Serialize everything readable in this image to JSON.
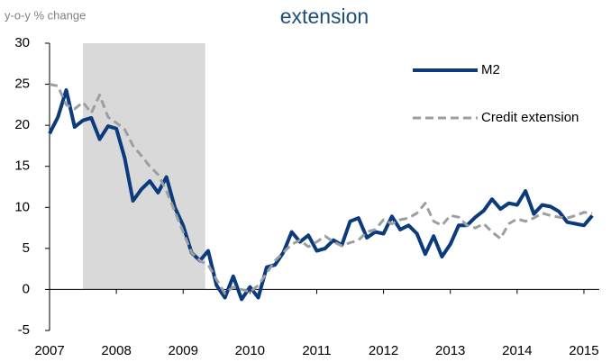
{
  "chart_data": {
    "type": "line",
    "title": "extension",
    "y_axis_label": "y-o-y % change",
    "x": [
      2007.0,
      2007.125,
      2007.25,
      2007.375,
      2007.5,
      2007.625,
      2007.75,
      2007.875,
      2008.0,
      2008.125,
      2008.25,
      2008.375,
      2008.5,
      2008.625,
      2008.75,
      2008.875,
      2009.0,
      2009.125,
      2009.25,
      2009.375,
      2009.5,
      2009.625,
      2009.75,
      2009.875,
      2010.0,
      2010.125,
      2010.25,
      2010.375,
      2010.5,
      2010.625,
      2010.75,
      2010.875,
      2011.0,
      2011.125,
      2011.25,
      2011.375,
      2011.5,
      2011.625,
      2011.75,
      2011.875,
      2012.0,
      2012.125,
      2012.25,
      2012.375,
      2012.5,
      2012.625,
      2012.75,
      2012.875,
      2013.0,
      2013.125,
      2013.25,
      2013.375,
      2013.5,
      2013.625,
      2013.75,
      2013.875,
      2014.0,
      2014.125,
      2014.25,
      2014.375,
      2014.5,
      2014.625,
      2014.75,
      2014.875,
      2015.0,
      2015.125
    ],
    "series": [
      {
        "name": "M2",
        "color": "#0b3b7c",
        "dashed": false,
        "values": [
          19,
          21,
          24.3,
          19.8,
          20.6,
          20.9,
          18.3,
          19.9,
          19.6,
          16,
          10.8,
          12.2,
          13.2,
          11.8,
          13.7,
          10,
          7.8,
          4.5,
          3.5,
          4.7,
          0.5,
          -1,
          1.6,
          -1.2,
          0.3,
          -1,
          2.7,
          3,
          4.5,
          7,
          5.8,
          6.6,
          4.7,
          5,
          6,
          5.4,
          8.3,
          8.7,
          6.3,
          7,
          6.8,
          8.9,
          7.3,
          7.8,
          6.8,
          4.3,
          6.5,
          4,
          5.5,
          7.8,
          7.8,
          8.8,
          9.6,
          11,
          9.8,
          10.5,
          10.3,
          12,
          9.2,
          10.3,
          10.1,
          9.5,
          8.2,
          8,
          7.8,
          9
        ]
      },
      {
        "name": "Credit extension",
        "color": "#9a9fa3",
        "dashed": true,
        "values": [
          25,
          24.8,
          22.5,
          22,
          22.8,
          21.5,
          23.7,
          21,
          20.3,
          19.5,
          17.5,
          16.3,
          15,
          14,
          12,
          9.5,
          7,
          4.5,
          3.5,
          3,
          1.2,
          -0.5,
          0.3,
          0,
          -0.3,
          0.5,
          2,
          3.5,
          4.5,
          5.5,
          6,
          5.2,
          5.8,
          6.5,
          5.8,
          5.3,
          5.7,
          6,
          7,
          7.3,
          8.5,
          8,
          8.5,
          8.7,
          9.3,
          10.5,
          8.3,
          7.8,
          9,
          8.8,
          7.8,
          7.5,
          8,
          7,
          6.2,
          8,
          8.6,
          8.3,
          8.7,
          9.3,
          9,
          8.8,
          8.7,
          9,
          9.4,
          9.3
        ]
      }
    ],
    "highlight_x": [
      2007.5,
      2009.33
    ],
    "highlight_color": "#d9d9d9",
    "xlim": [
      2007,
      2015.23
    ],
    "xticks": [
      2007,
      2008,
      2009,
      2010,
      2011,
      2012,
      2013,
      2014,
      2015
    ],
    "ylim": [
      -5,
      30
    ],
    "yticks": [
      -5,
      0,
      5,
      10,
      15,
      20,
      25,
      30
    ],
    "grid": false,
    "legend": "upper right"
  }
}
